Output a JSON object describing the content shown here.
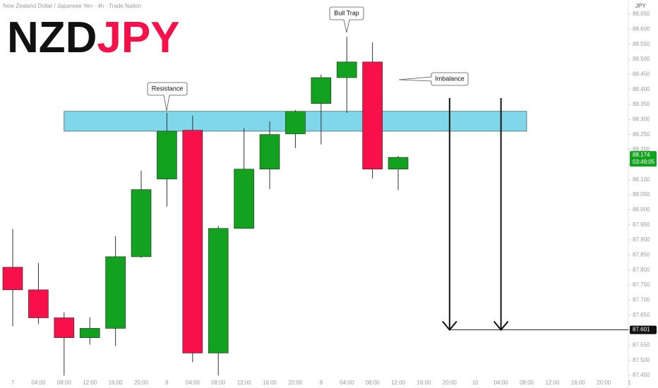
{
  "chart_data": {
    "type": "candlestick",
    "title": "New Zealand Dollar / Japanese Yen · 4h · Trade Nation",
    "logo": [
      "NZD",
      "JPY"
    ],
    "currency": "JPY",
    "categories": [
      "7",
      "04:00",
      "08:00",
      "12:00",
      "16:00",
      "20:00",
      "8",
      "04:00",
      "08:00",
      "12:00",
      "16:00",
      "20:00",
      "9",
      "04:00",
      "08:00",
      "12:00",
      "16:00",
      "20:00",
      "10",
      "04:00",
      "08:00",
      "12:00",
      "16:00",
      "20:00",
      "1"
    ],
    "open": [
      87.809,
      87.734,
      87.641,
      87.575,
      87.606,
      87.844,
      88.102,
      88.264,
      87.524,
      87.938,
      88.135,
      88.252,
      88.353,
      88.439,
      88.491,
      88.135,
      null,
      null,
      null,
      null,
      null,
      null,
      null,
      null,
      null
    ],
    "high": [
      87.936,
      87.823,
      87.659,
      87.643,
      87.912,
      88.13,
      88.322,
      88.313,
      87.947,
      88.271,
      88.294,
      88.331,
      88.449,
      88.575,
      88.556,
      88.179,
      null,
      null,
      null,
      null,
      null,
      null,
      null,
      null,
      null
    ],
    "low": [
      87.613,
      87.62,
      87.449,
      87.552,
      87.547,
      87.84,
      88.011,
      87.493,
      87.449,
      87.938,
      88.069,
      88.205,
      88.217,
      88.322,
      88.104,
      88.065,
      null,
      null,
      null,
      null,
      null,
      null,
      null,
      null,
      null
    ],
    "close": [
      87.734,
      87.641,
      87.575,
      87.606,
      87.844,
      88.067,
      88.261,
      87.524,
      87.938,
      88.135,
      88.25,
      88.327,
      88.439,
      88.491,
      88.135,
      88.174,
      null,
      null,
      null,
      null,
      null,
      null,
      null,
      null,
      null
    ],
    "up_color": "#12a21f",
    "down_color": "#f7104a",
    "ylim": [
      87.45,
      88.65
    ],
    "yticks": [
      {
        "value": 87.45,
        "label": "87.450"
      },
      {
        "value": 87.5,
        "label": "87.500"
      },
      {
        "value": 87.55,
        "label": "87.550"
      },
      {
        "value": 87.6,
        "label": "87.600"
      },
      {
        "value": 87.65,
        "label": "87.650"
      },
      {
        "value": 87.7,
        "label": "87.700"
      },
      {
        "value": 87.75,
        "label": "87.750"
      },
      {
        "value": 87.8,
        "label": "87.800"
      },
      {
        "value": 87.85,
        "label": "87.850"
      },
      {
        "value": 87.9,
        "label": "87.900"
      },
      {
        "value": 87.95,
        "label": "87.950"
      },
      {
        "value": 88.0,
        "label": "88.000"
      },
      {
        "value": 88.05,
        "label": "88.050"
      },
      {
        "value": 88.1,
        "label": "88.100"
      },
      {
        "value": 88.15,
        "label": "88.150"
      },
      {
        "value": 88.2,
        "label": "88.200"
      },
      {
        "value": 88.25,
        "label": "88.250"
      },
      {
        "value": 88.3,
        "label": "88.300"
      },
      {
        "value": 88.35,
        "label": "88.350"
      },
      {
        "value": 88.4,
        "label": "88.400"
      },
      {
        "value": 88.45,
        "label": "88.450"
      },
      {
        "value": 88.5,
        "label": "88.500"
      },
      {
        "value": 88.55,
        "label": "88.550"
      },
      {
        "value": 88.6,
        "label": "88.600"
      },
      {
        "value": 88.65,
        "label": "88.650"
      }
    ],
    "zone": [
      88.261,
      88.327
    ],
    "zone_color": "#7fd8ea",
    "price_line": {
      "value": 87.601,
      "label": "87.601"
    },
    "last_price": {
      "value": 88.174,
      "label": "88.174",
      "countdown": "03:49:05"
    },
    "callouts": [
      "Resistance",
      "Bull Trap",
      "Imbalance"
    ]
  }
}
